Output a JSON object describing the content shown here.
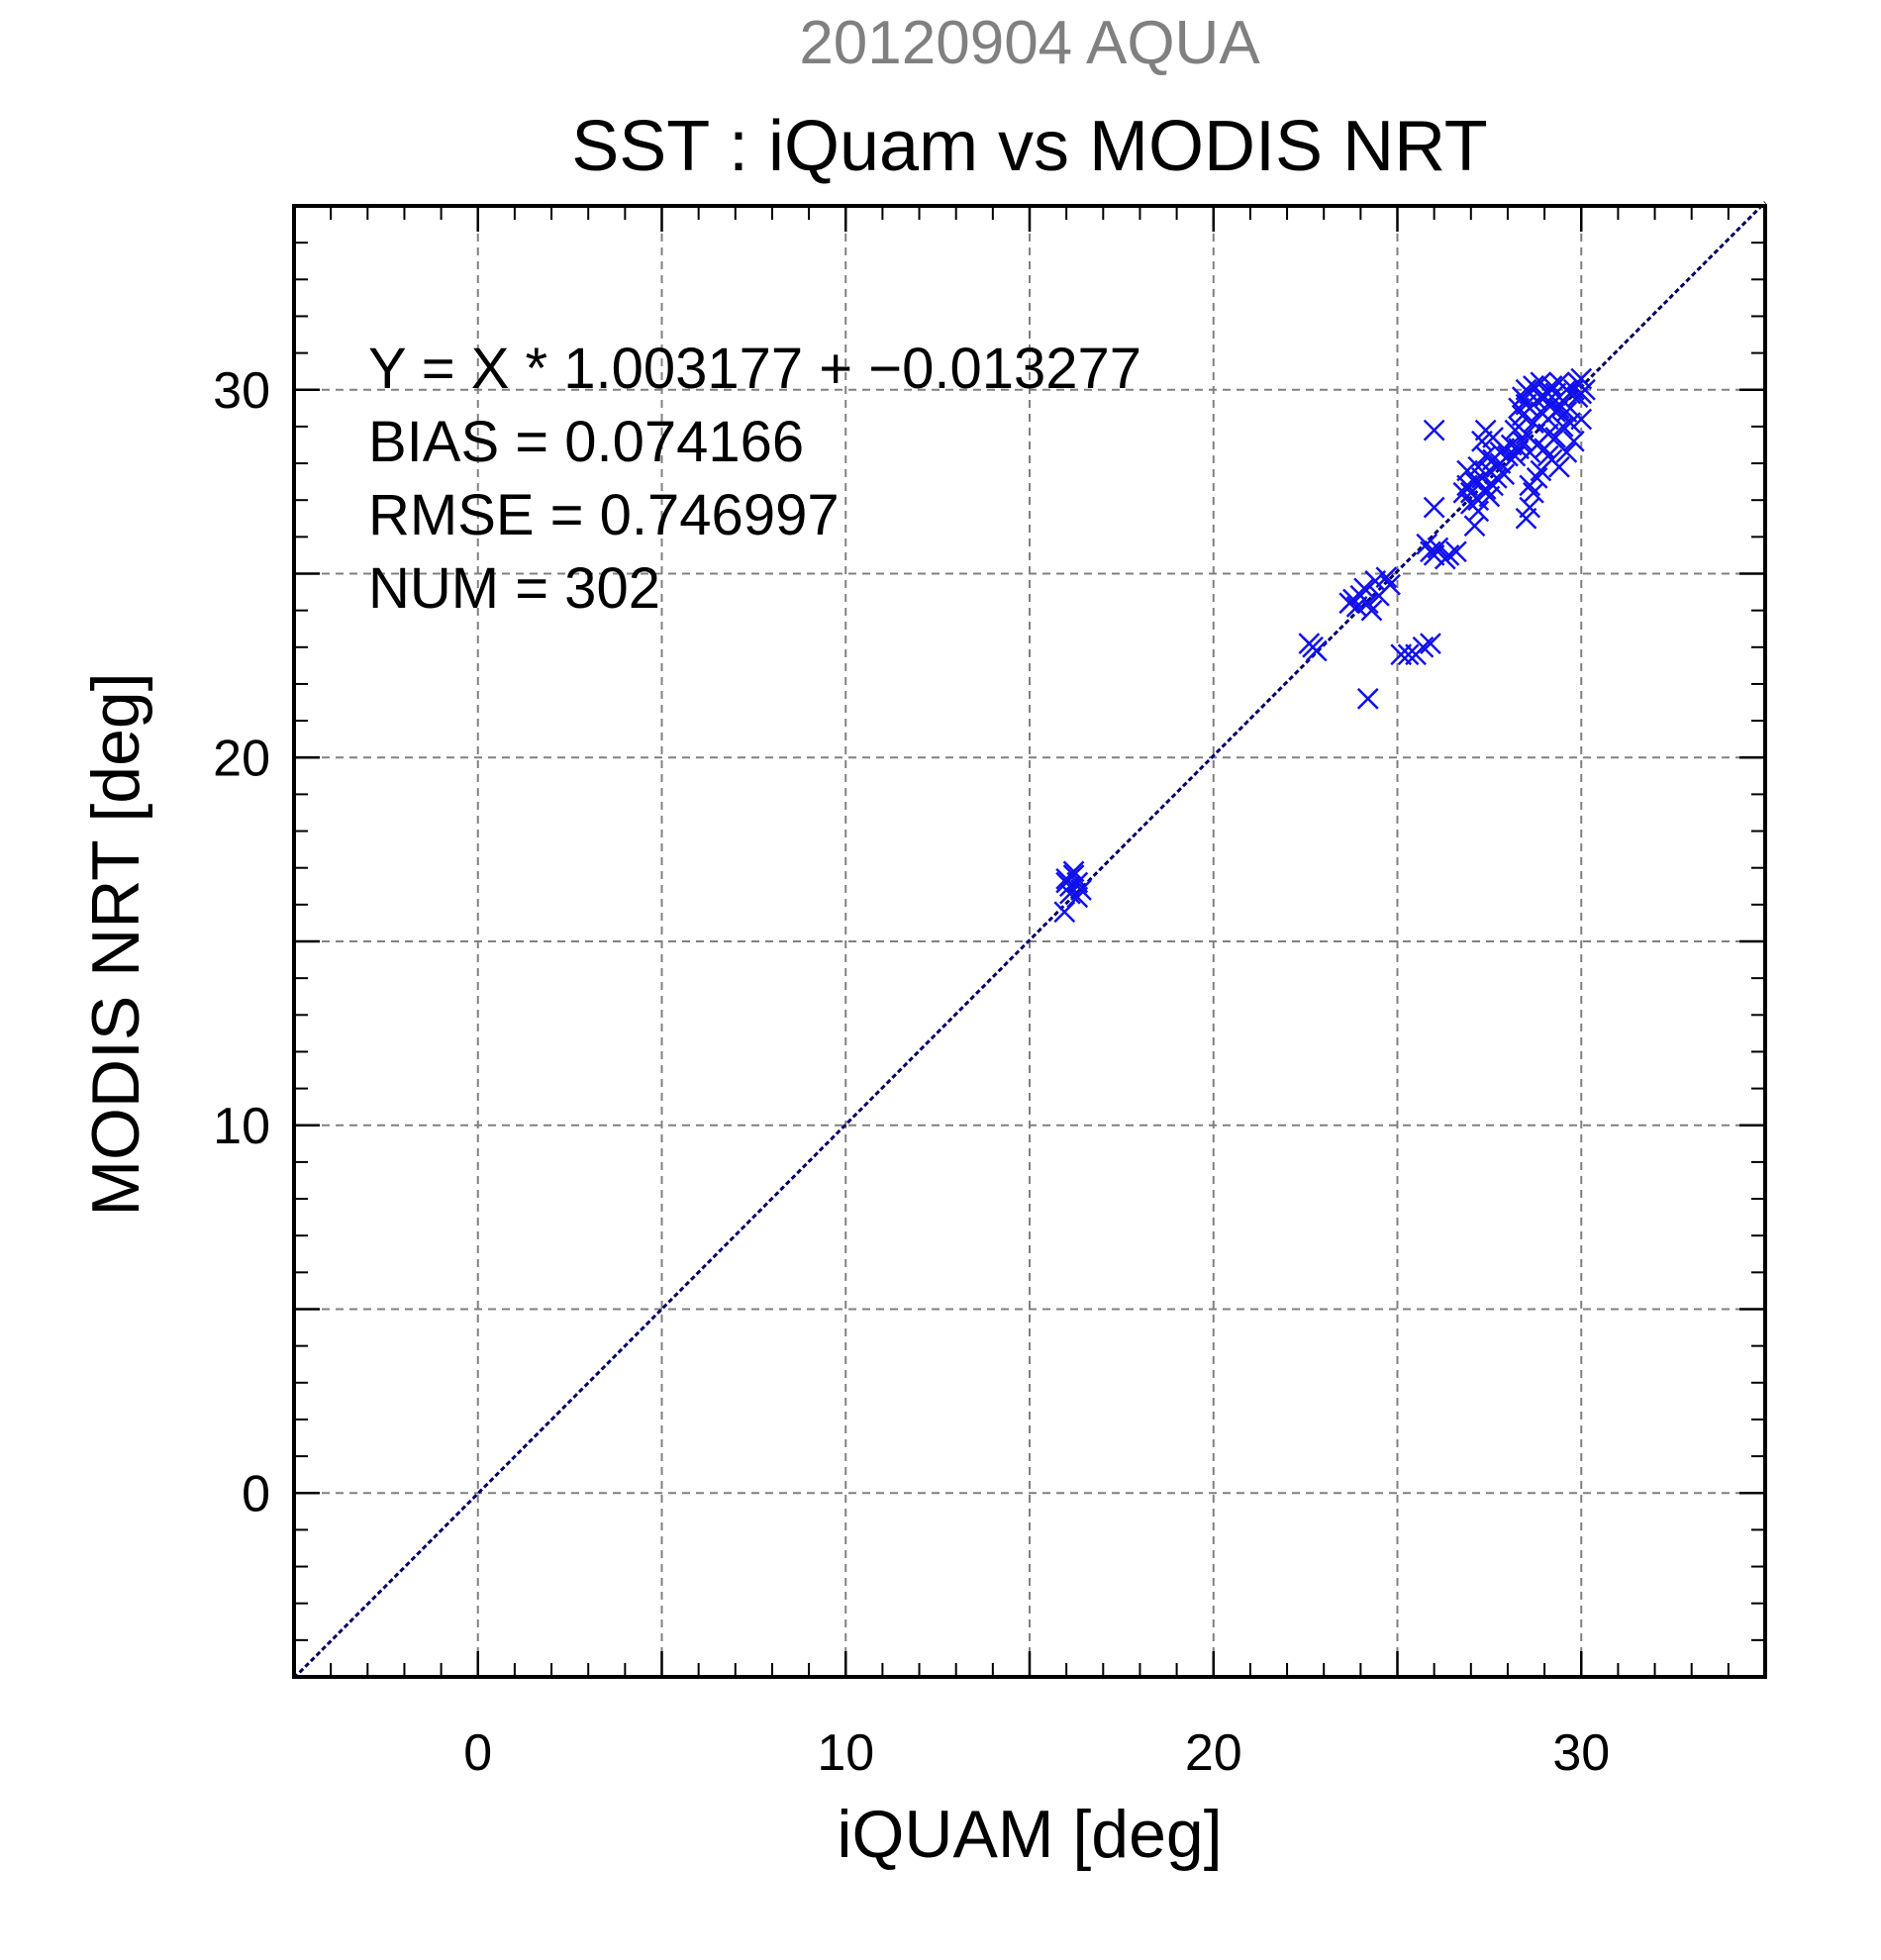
{
  "chart_data": {
    "type": "scatter",
    "subtitle": "20120904 AQUA",
    "title": "SST : iQuam vs MODIS NRT",
    "xlabel": "iQUAM [deg]",
    "ylabel": "MODIS NRT [deg]",
    "xlim": [
      -5,
      35
    ],
    "ylim": [
      -5,
      35
    ],
    "xticks": [
      0,
      10,
      20,
      30
    ],
    "yticks": [
      0,
      10,
      20,
      30
    ],
    "xtick_labels": [
      "0",
      "10",
      "20",
      "30"
    ],
    "ytick_labels": [
      "0",
      "10",
      "20",
      "30"
    ],
    "grid": true,
    "grid_step": 5,
    "marker": "x",
    "marker_color": "#1010ee",
    "line_color": "#000066",
    "grid_color": "#808080",
    "reference_line": {
      "x": [
        -5,
        35
      ],
      "y": [
        -5.029,
        35.098
      ]
    },
    "stats": {
      "equation": "Y = X * 1.003177 + −0.013277",
      "bias": "BIAS = 0.074166",
      "rmse": "RMSE = 0.746997",
      "num": "NUM = 302"
    },
    "series": [
      {
        "points": [
          [
            16.0,
            16.7
          ],
          [
            16.1,
            16.5
          ],
          [
            16.2,
            16.8
          ],
          [
            16.3,
            16.6
          ],
          [
            16.1,
            16.3
          ],
          [
            16.4,
            16.4
          ],
          [
            15.95,
            15.8
          ],
          [
            16.2,
            16.9
          ],
          [
            16.0,
            16.6
          ],
          [
            16.3,
            16.2
          ],
          [
            22.7,
            23.0
          ],
          [
            22.8,
            22.9
          ],
          [
            22.6,
            23.1
          ],
          [
            23.8,
            24.3
          ],
          [
            23.9,
            24.1
          ],
          [
            24.0,
            24.4
          ],
          [
            24.2,
            24.2
          ],
          [
            23.7,
            24.2
          ],
          [
            24.1,
            24.6
          ],
          [
            24.4,
            24.8
          ],
          [
            24.7,
            24.9
          ],
          [
            24.8,
            24.7
          ],
          [
            24.5,
            24.4
          ],
          [
            24.3,
            24.0
          ],
          [
            24.2,
            21.6
          ],
          [
            25.1,
            22.8
          ],
          [
            25.3,
            22.8
          ],
          [
            25.5,
            22.8
          ],
          [
            25.7,
            23.0
          ],
          [
            25.9,
            23.1
          ],
          [
            25.9,
            25.6
          ],
          [
            26.0,
            25.5
          ],
          [
            26.1,
            25.7
          ],
          [
            26.3,
            25.4
          ],
          [
            26.4,
            25.5
          ],
          [
            26.6,
            25.6
          ],
          [
            25.8,
            25.8
          ],
          [
            26.0,
            28.9
          ],
          [
            26.0,
            26.8
          ],
          [
            26.9,
            27.4
          ],
          [
            27.0,
            27.2
          ],
          [
            27.1,
            27.5
          ],
          [
            27.2,
            27.0
          ],
          [
            27.3,
            27.6
          ],
          [
            27.4,
            27.3
          ],
          [
            27.5,
            27.8
          ],
          [
            27.6,
            27.4
          ],
          [
            27.7,
            27.9
          ],
          [
            27.8,
            28.0
          ],
          [
            27.9,
            27.7
          ],
          [
            27.0,
            26.9
          ],
          [
            27.2,
            26.7
          ],
          [
            27.1,
            26.3
          ],
          [
            27.3,
            28.6
          ],
          [
            27.4,
            28.9
          ],
          [
            27.6,
            28.7
          ],
          [
            27.8,
            28.3
          ],
          [
            26.8,
            27.2
          ],
          [
            27.5,
            27.1
          ],
          [
            27.7,
            27.6
          ],
          [
            28.0,
            28.2
          ],
          [
            28.1,
            28.5
          ],
          [
            27.9,
            28.4
          ],
          [
            26.9,
            27.8
          ],
          [
            27.2,
            27.9
          ],
          [
            27.4,
            28.2
          ],
          [
            27.6,
            28.1
          ],
          [
            28.3,
            29.0
          ],
          [
            28.4,
            29.3
          ],
          [
            28.5,
            28.8
          ],
          [
            28.6,
            29.5
          ],
          [
            28.7,
            29.1
          ],
          [
            28.8,
            29.7
          ],
          [
            28.9,
            29.4
          ],
          [
            29.0,
            29.8
          ],
          [
            29.1,
            29.2
          ],
          [
            29.2,
            29.6
          ],
          [
            29.3,
            29.9
          ],
          [
            29.4,
            29.5
          ],
          [
            29.5,
            29.7
          ],
          [
            29.6,
            29.4
          ],
          [
            29.7,
            29.9
          ],
          [
            29.8,
            30.0
          ],
          [
            29.9,
            30.2
          ],
          [
            30.0,
            30.3
          ],
          [
            30.1,
            30.0
          ],
          [
            29.9,
            29.8
          ],
          [
            30.0,
            29.9
          ],
          [
            28.4,
            29.8
          ],
          [
            28.6,
            29.9
          ],
          [
            28.5,
            30.0
          ],
          [
            28.7,
            30.1
          ],
          [
            28.9,
            30.2
          ],
          [
            29.2,
            30.1
          ],
          [
            29.4,
            30.2
          ],
          [
            29.6,
            30.0
          ],
          [
            28.3,
            29.5
          ],
          [
            28.4,
            28.6
          ],
          [
            28.6,
            28.3
          ],
          [
            28.8,
            28.5
          ],
          [
            29.0,
            28.4
          ],
          [
            29.1,
            28.8
          ],
          [
            29.3,
            28.7
          ],
          [
            29.5,
            29.0
          ],
          [
            29.7,
            29.1
          ],
          [
            28.2,
            28.9
          ],
          [
            28.5,
            29.6
          ],
          [
            28.9,
            29.8
          ],
          [
            29.1,
            29.9
          ],
          [
            29.3,
            29.4
          ],
          [
            28.6,
            27.4
          ],
          [
            28.8,
            27.6
          ],
          [
            28.7,
            27.2
          ],
          [
            28.6,
            26.8
          ],
          [
            28.5,
            26.5
          ],
          [
            28.9,
            27.8
          ],
          [
            29.2,
            28.1
          ],
          [
            29.4,
            27.9
          ],
          [
            29.6,
            28.3
          ],
          [
            29.8,
            28.6
          ],
          [
            30.0,
            29.2
          ],
          [
            29.1,
            28.2
          ],
          [
            28.3,
            28.4
          ],
          [
            28.2,
            28.2
          ]
        ]
      }
    ]
  }
}
